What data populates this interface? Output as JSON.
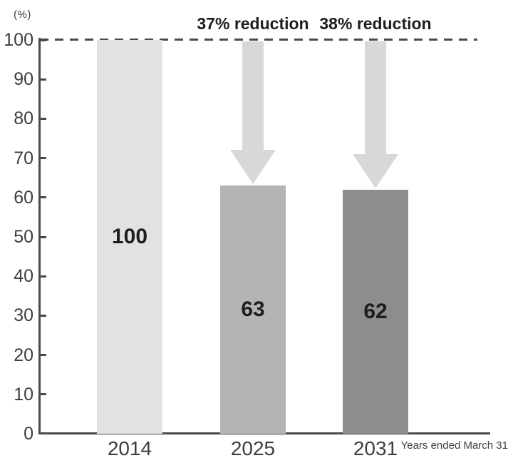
{
  "figure": {
    "background": "#ffffff"
  },
  "chart_data": {
    "type": "bar",
    "categories": [
      "2014",
      "2025",
      "2031"
    ],
    "values": [
      100,
      63,
      62
    ],
    "value_labels": [
      "100",
      "63",
      "62"
    ],
    "bar_colors": [
      "#e2e2e2",
      "#b4b4b4",
      "#8d8d8d"
    ],
    "title": "",
    "ylabel": "(%)",
    "xlabel": "Years ended March 31",
    "ylim": [
      0,
      100
    ],
    "yticks": [
      0,
      10,
      20,
      30,
      40,
      50,
      60,
      70,
      80,
      90,
      100
    ],
    "grid": false,
    "legend": false,
    "reference_line": {
      "value": 100,
      "style": "dashed",
      "color": "#4a4a4a"
    },
    "annotations": [
      {
        "label": "37% reduction",
        "category": "2025",
        "arrow_from": 100,
        "arrow_to": 63
      },
      {
        "label": "38% reduction",
        "category": "2031",
        "arrow_from": 100,
        "arrow_to": 62
      }
    ],
    "colors": {
      "axis": "#4a4a4a",
      "tick_text": "#3d3d3d",
      "emphasis_text": "#1e1e1e",
      "arrow": "#d8d8d8"
    }
  }
}
